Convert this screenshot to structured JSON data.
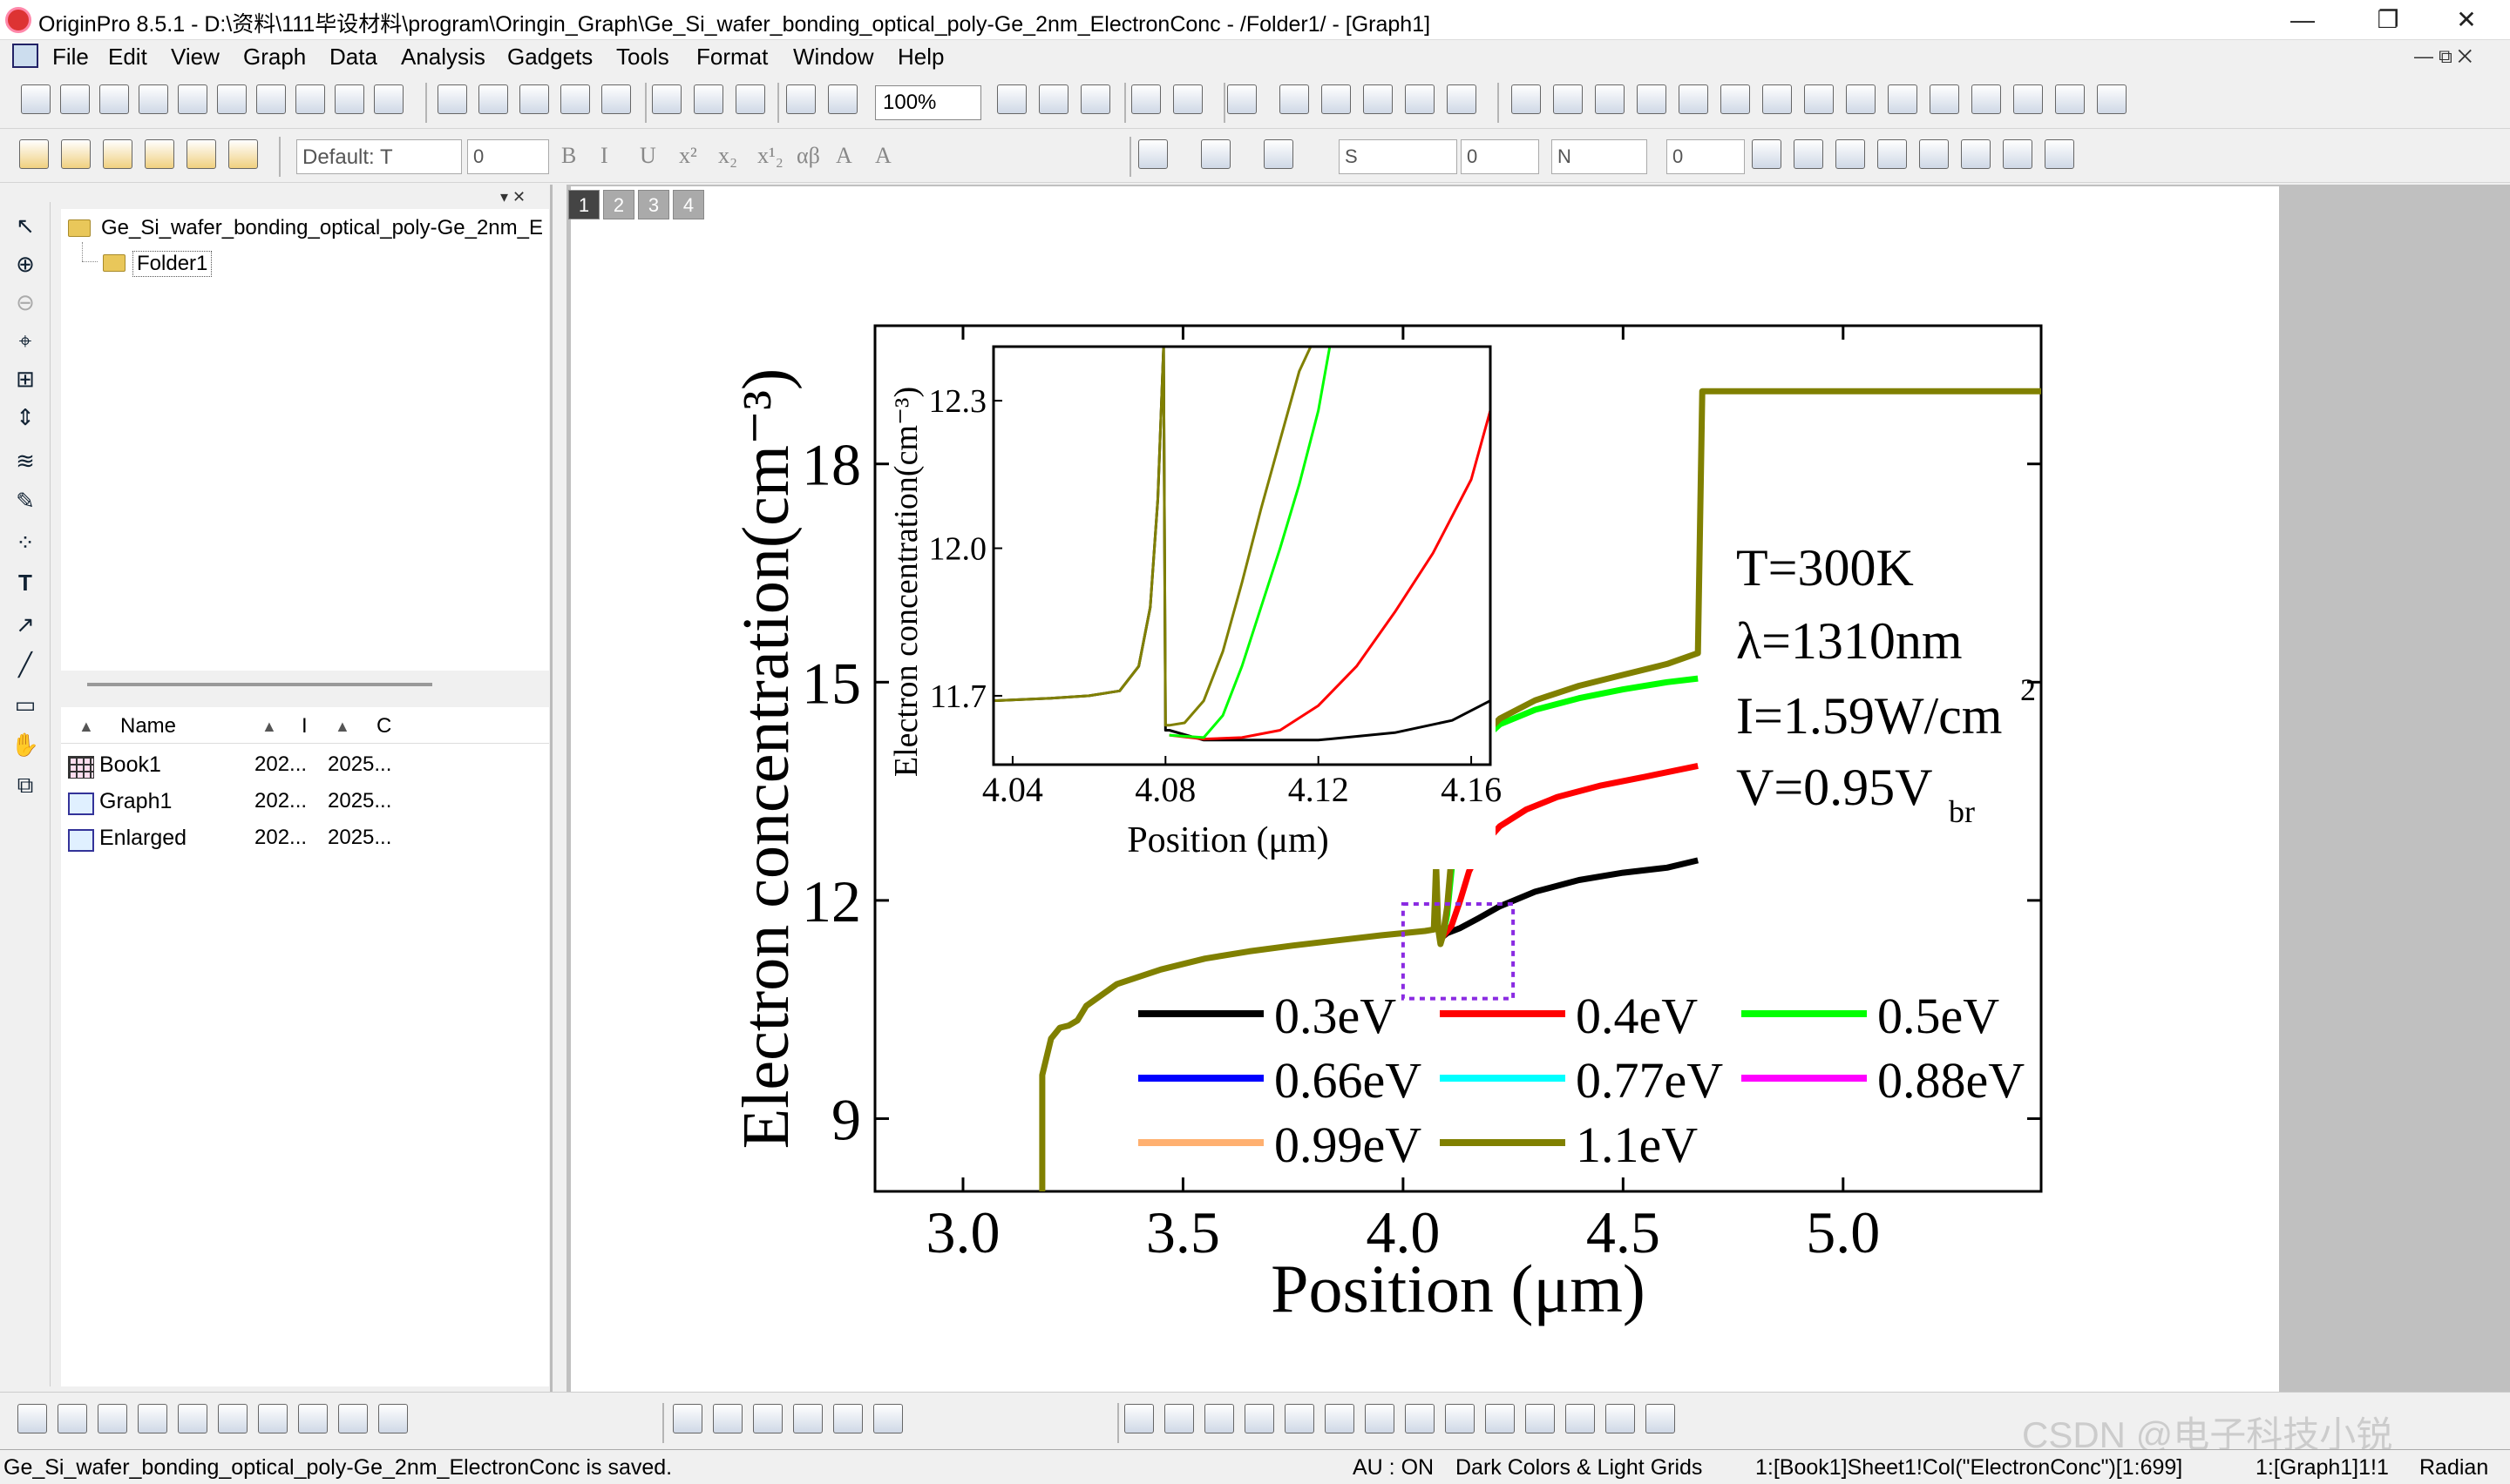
{
  "window": {
    "title": "OriginPro 8.5.1 - D:\\资料\\111毕设材料\\program\\Oringin_Graph\\Ge_Si_wafer_bonding_optical_poly-Ge_2nm_ElectronConc - /Folder1/ - [Graph1]",
    "minimize": "—",
    "restore": "❐",
    "close": "✕"
  },
  "menu": [
    "File",
    "Edit",
    "View",
    "Graph",
    "Data",
    "Analysis",
    "Gadgets",
    "Tools",
    "Format",
    "Window",
    "Help"
  ],
  "toolbar": {
    "zoom": "100%",
    "font": "Default: T",
    "font_size": "0",
    "line_style": "S",
    "line_width": "0",
    "fill": "N",
    "fill_value": "0"
  },
  "format_buttons": [
    "B",
    "I",
    "U",
    "x²",
    "x₂",
    "x¹₂",
    "αβ",
    "A",
    "A"
  ],
  "explorer": {
    "project": "Ge_Si_wafer_bonding_optical_poly-Ge_2nm_E",
    "folder": "Folder1",
    "columns": [
      "Name",
      "I",
      "C"
    ],
    "items": [
      {
        "name": "Book1",
        "c1": "202...",
        "c2": "2025..."
      },
      {
        "name": "Graph1",
        "c1": "202...",
        "c2": "2025..."
      },
      {
        "name": "Enlarged",
        "c1": "202...",
        "c2": "2025..."
      }
    ]
  },
  "page_tabs": [
    "1",
    "2",
    "3",
    "4"
  ],
  "chart_data": [
    {
      "type": "line",
      "ylabel": "Electron concentration(cm⁻³)",
      "xlabel": "Position (μm)",
      "xlim": [
        2.8,
        5.45
      ],
      "ylim": [
        8.0,
        19.9
      ],
      "xticks": [
        "3.0",
        "3.5",
        "4.0",
        "4.5",
        "5.0"
      ],
      "yticks": [
        "9",
        "12",
        "15",
        "18"
      ],
      "annotations": [
        "T=300K",
        "λ=1310nm",
        "I=1.59W/cm",
        "2",
        "V=0.95V",
        "br"
      ],
      "legend": [
        "0.3eV",
        "0.4eV",
        "0.5eV",
        "0.66eV",
        "0.77eV",
        "0.88eV",
        "0.99eV",
        "1.1eV"
      ],
      "series": [
        {
          "name": "0.3eV",
          "color": "#000000",
          "x": [
            4.09,
            4.1,
            4.13,
            4.17,
            4.22,
            4.3,
            4.4,
            4.5,
            4.6,
            4.67
          ],
          "y": [
            11.5,
            11.55,
            11.62,
            11.75,
            11.92,
            12.12,
            12.28,
            12.38,
            12.45,
            12.55
          ]
        },
        {
          "name": "0.4eV",
          "color": "#ff0000",
          "x": [
            4.09,
            4.11,
            4.13,
            4.15,
            4.18,
            4.22,
            4.28,
            4.35,
            4.45,
            4.55,
            4.67
          ],
          "y": [
            11.5,
            11.65,
            12.0,
            12.4,
            12.75,
            13.02,
            13.25,
            13.42,
            13.58,
            13.7,
            13.85
          ]
        },
        {
          "name": "0.5eV",
          "color": "#00ff00",
          "x": [
            4.09,
            4.1,
            4.11,
            4.12,
            4.13,
            4.15,
            4.18,
            4.22,
            4.3,
            4.4,
            4.5,
            4.6,
            4.67
          ],
          "y": [
            11.5,
            11.8,
            12.4,
            13.0,
            13.4,
            13.9,
            14.2,
            14.42,
            14.62,
            14.78,
            14.9,
            15.0,
            15.05
          ]
        },
        {
          "name": "1.1eV",
          "color": "#808000",
          "x": [
            3.18,
            3.18,
            3.2,
            3.22,
            3.24,
            3.26,
            3.28,
            3.35,
            3.45,
            3.55,
            3.65,
            3.75,
            3.85,
            3.95,
            4.05,
            4.07,
            4.075,
            4.08,
            4.085,
            4.09,
            4.1,
            4.11,
            4.12,
            4.14,
            4.17,
            4.22,
            4.3,
            4.4,
            4.5,
            4.6,
            4.67,
            4.68,
            5.45
          ],
          "y": [
            8.0,
            9.6,
            10.1,
            10.25,
            10.28,
            10.35,
            10.55,
            10.85,
            11.05,
            11.2,
            11.3,
            11.38,
            11.45,
            11.52,
            11.58,
            11.6,
            12.5,
            11.6,
            11.4,
            11.5,
            11.9,
            12.6,
            13.2,
            13.8,
            14.2,
            14.5,
            14.75,
            14.95,
            15.1,
            15.25,
            15.4,
            19.0,
            19.0
          ]
        }
      ]
    },
    {
      "type": "line",
      "ylabel": "Electron concentration(cm⁻³)",
      "xlabel": "Position (μm)",
      "xlim": [
        4.035,
        4.165
      ],
      "ylim": [
        11.56,
        12.41
      ],
      "xticks": [
        "4.04",
        "4.08",
        "4.12",
        "4.16"
      ],
      "yticks": [
        "11.7",
        "12.0",
        "12.3"
      ],
      "series": [
        {
          "name": "0.3eV",
          "color": "#000000",
          "x": [
            4.035,
            4.05,
            4.06,
            4.068,
            4.073,
            4.076,
            4.078,
            4.0795,
            4.08,
            4.081,
            4.09,
            4.1,
            4.12,
            4.14,
            4.155,
            4.165
          ],
          "y": [
            11.69,
            11.695,
            11.7,
            11.71,
            11.76,
            11.88,
            12.1,
            12.41,
            11.63,
            11.63,
            11.61,
            11.61,
            11.61,
            11.625,
            11.65,
            11.69
          ]
        },
        {
          "name": "0.4eV",
          "color": "#ff0000",
          "x": [
            4.081,
            4.09,
            4.1,
            4.11,
            4.12,
            4.13,
            4.14,
            4.15,
            4.16,
            4.165
          ],
          "y": [
            11.62,
            11.612,
            11.615,
            11.63,
            11.68,
            11.76,
            11.87,
            11.99,
            12.14,
            12.28
          ]
        },
        {
          "name": "0.5eV",
          "color": "#00ff00",
          "x": [
            4.081,
            4.09,
            4.095,
            4.1,
            4.105,
            4.11,
            4.115,
            4.12,
            4.123
          ],
          "y": [
            11.62,
            11.615,
            11.66,
            11.76,
            11.88,
            12.0,
            12.13,
            12.28,
            12.41
          ]
        },
        {
          "name": "1.1eV",
          "color": "#808000",
          "x": [
            4.035,
            4.05,
            4.06,
            4.068,
            4.073,
            4.076,
            4.078,
            4.0795,
            4.08,
            4.081,
            4.085,
            4.09,
            4.095,
            4.1,
            4.105,
            4.11,
            4.115,
            4.118
          ],
          "y": [
            11.69,
            11.695,
            11.7,
            11.71,
            11.76,
            11.88,
            12.1,
            12.41,
            11.64,
            11.64,
            11.645,
            11.69,
            11.79,
            11.93,
            12.08,
            12.22,
            12.36,
            12.41
          ]
        }
      ]
    }
  ],
  "bottom_watermark": "CSDN @电子科技小锐",
  "status": {
    "message": "Ge_Si_wafer_bonding_optical_poly-Ge_2nm_ElectronConc is saved.",
    "au": "AU : ON",
    "theme": "Dark Colors & Light Grids",
    "cell": "1:[Book1]Sheet1!Col(\"ElectronConc\")[1:699]",
    "layer": "1:[Graph1]1!1",
    "angle": "Radian"
  }
}
